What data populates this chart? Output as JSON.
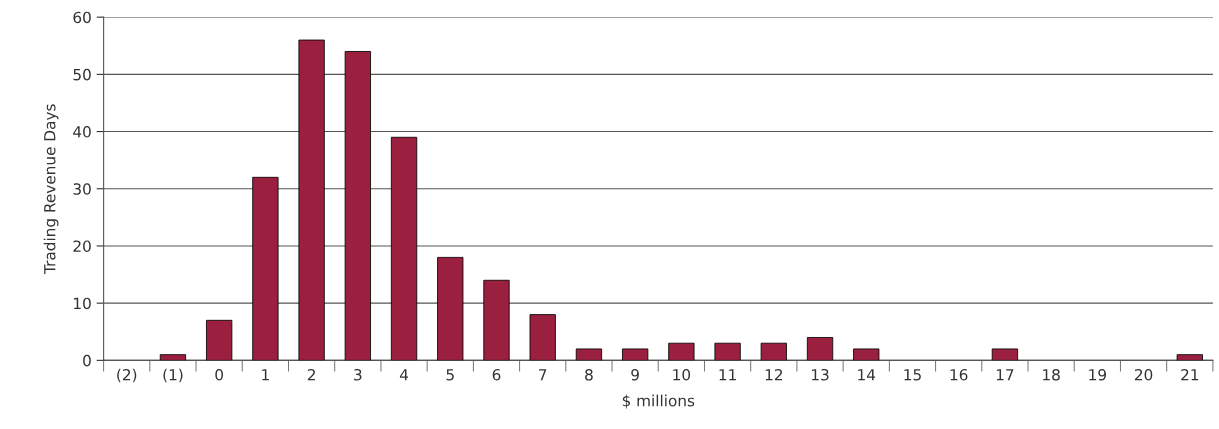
{
  "chart_data": {
    "type": "bar",
    "xlabel": "$ millions",
    "ylabel": "Trading Revenue Days",
    "categories": [
      "(2)",
      "(1)",
      "0",
      "1",
      "2",
      "3",
      "4",
      "5",
      "6",
      "7",
      "8",
      "9",
      "10",
      "11",
      "12",
      "13",
      "14",
      "15",
      "16",
      "17",
      "18",
      "19",
      "20",
      "21"
    ],
    "values": [
      0,
      1,
      7,
      32,
      56,
      54,
      39,
      18,
      14,
      8,
      2,
      2,
      3,
      3,
      3,
      4,
      2,
      0,
      0,
      2,
      0,
      0,
      0,
      1
    ],
    "color": "#9b2040",
    "ylim": [
      0,
      60
    ],
    "yticks": [
      0,
      10,
      20,
      30,
      40,
      50,
      60
    ],
    "grid": "y"
  }
}
